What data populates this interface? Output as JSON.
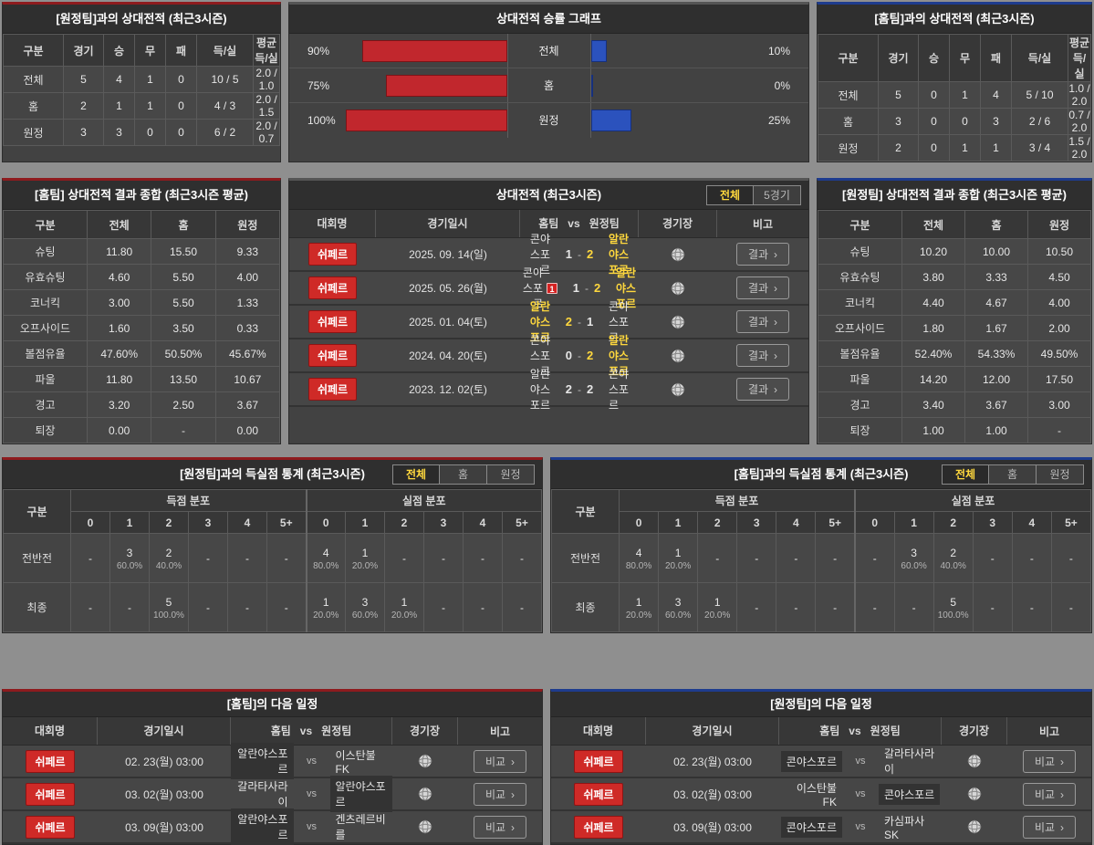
{
  "palette": {
    "accent_red": "#8e1b1e",
    "accent_blue": "#1e3c8e",
    "bar_red": "#c1272d",
    "bar_blue": "#2b52bd",
    "highlight_yellow": "#ffd83d",
    "badge_red": "#cf2a27"
  },
  "icons": {
    "chevron_right": "›",
    "stadium": "globe-icon"
  },
  "recordAway": {
    "title": "[원정팀]과의 상대전적 (최근3시즌)",
    "headers": [
      "구분",
      "경기",
      "승",
      "무",
      "패",
      "득/실",
      "평균 득/실"
    ],
    "rows": [
      {
        "label": "전체",
        "cells": [
          "5",
          "4",
          "1",
          "0",
          "10 / 5",
          "2.0 / 1.0"
        ]
      },
      {
        "label": "홈",
        "cells": [
          "2",
          "1",
          "1",
          "0",
          "4 / 3",
          "2.0 / 1.5"
        ]
      },
      {
        "label": "원정",
        "cells": [
          "3",
          "3",
          "0",
          "0",
          "6 / 2",
          "2.0 / 0.7"
        ]
      }
    ]
  },
  "winChart": {
    "title": "상대전적 승률 그래프",
    "rows": [
      {
        "label": "전체",
        "home_pct_label": "90%",
        "home_pct": 90,
        "away_pct_label": "10%",
        "away_pct": 10
      },
      {
        "label": "홈",
        "home_pct_label": "75%",
        "home_pct": 75,
        "away_pct_label": "0%",
        "away_pct": 0
      },
      {
        "label": "원정",
        "home_pct_label": "100%",
        "home_pct": 100,
        "away_pct_label": "25%",
        "away_pct": 25
      }
    ]
  },
  "recordHome": {
    "title": "[홈팀]과의 상대전적 (최근3시즌)",
    "headers": [
      "구분",
      "경기",
      "승",
      "무",
      "패",
      "득/실",
      "평균 득/실"
    ],
    "rows": [
      {
        "label": "전체",
        "cells": [
          "5",
          "0",
          "1",
          "4",
          "5 / 10",
          "1.0 / 2.0"
        ]
      },
      {
        "label": "홈",
        "cells": [
          "3",
          "0",
          "0",
          "3",
          "2 / 6",
          "0.7 / 2.0"
        ]
      },
      {
        "label": "원정",
        "cells": [
          "2",
          "0",
          "1",
          "1",
          "3 / 4",
          "1.5 / 2.0"
        ]
      }
    ]
  },
  "homeSummary": {
    "title": "[홈팀] 상대전적 결과 종합 (최근3시즌 평균)",
    "headers": [
      "구분",
      "전체",
      "홈",
      "원정"
    ],
    "rows": [
      {
        "label": "슈팅",
        "cells": [
          "11.80",
          "15.50",
          "9.33"
        ]
      },
      {
        "label": "유효슈팅",
        "cells": [
          "4.60",
          "5.50",
          "4.00"
        ]
      },
      {
        "label": "코너킥",
        "cells": [
          "3.00",
          "5.50",
          "1.33"
        ]
      },
      {
        "label": "오프사이드",
        "cells": [
          "1.60",
          "3.50",
          "0.33"
        ]
      },
      {
        "label": "볼점유율",
        "cells": [
          "47.60%",
          "50.50%",
          "45.67%"
        ]
      },
      {
        "label": "파울",
        "cells": [
          "11.80",
          "13.50",
          "10.67"
        ]
      },
      {
        "label": "경고",
        "cells": [
          "3.20",
          "2.50",
          "3.67"
        ]
      },
      {
        "label": "퇴장",
        "cells": [
          "0.00",
          "-",
          "0.00"
        ]
      }
    ]
  },
  "h2h": {
    "title": "상대전적 (최근3시즌)",
    "tabs": [
      {
        "label": "전체",
        "active": true
      },
      {
        "label": "5경기",
        "active": false
      }
    ],
    "headers": {
      "league": "대회명",
      "datetime": "경기일시",
      "home": "홈팀",
      "vs": "vs",
      "away": "원정팀",
      "stadium": "경기장",
      "note": "비고"
    },
    "result_button": "결과",
    "score_sep": "-",
    "rows": [
      {
        "league": "쉬페르",
        "date": "2025. 09. 14(일)",
        "home": "콘야스포르",
        "home_card": "",
        "home_win": false,
        "home_score": "1",
        "away_score": "2",
        "away": "알란야스포르",
        "away_win": true
      },
      {
        "league": "쉬페르",
        "date": "2025. 05. 26(월)",
        "home": "콘야스포르",
        "home_card": "1",
        "home_win": false,
        "home_score": "1",
        "away_score": "2",
        "away": "알란야스포르",
        "away_win": true
      },
      {
        "league": "쉬페르",
        "date": "2025. 01. 04(토)",
        "home": "알란야스포르",
        "home_card": "",
        "home_win": true,
        "home_score": "2",
        "away_score": "1",
        "away": "콘야스포르",
        "away_win": false
      },
      {
        "league": "쉬페르",
        "date": "2024. 04. 20(토)",
        "home": "콘야스포르",
        "home_card": "",
        "home_win": false,
        "home_score": "0",
        "away_score": "2",
        "away": "알란야스포르",
        "away_win": true
      },
      {
        "league": "쉬페르",
        "date": "2023. 12. 02(토)",
        "home": "알란야스포르",
        "home_card": "",
        "home_win": false,
        "home_score": "2",
        "away_score": "2",
        "away": "콘야스포르",
        "away_win": false
      }
    ]
  },
  "awaySummary": {
    "title": "[원정팀] 상대전적 결과 종합 (최근3시즌 평균)",
    "headers": [
      "구분",
      "전체",
      "홈",
      "원정"
    ],
    "rows": [
      {
        "label": "슈팅",
        "cells": [
          "10.20",
          "10.00",
          "10.50"
        ]
      },
      {
        "label": "유효슈팅",
        "cells": [
          "3.80",
          "3.33",
          "4.50"
        ]
      },
      {
        "label": "코너킥",
        "cells": [
          "4.40",
          "4.67",
          "4.00"
        ]
      },
      {
        "label": "오프사이드",
        "cells": [
          "1.80",
          "1.67",
          "2.00"
        ]
      },
      {
        "label": "볼점유율",
        "cells": [
          "52.40%",
          "54.33%",
          "49.50%"
        ]
      },
      {
        "label": "파울",
        "cells": [
          "14.20",
          "12.00",
          "17.50"
        ]
      },
      {
        "label": "경고",
        "cells": [
          "3.40",
          "3.67",
          "3.00"
        ]
      },
      {
        "label": "퇴장",
        "cells": [
          "1.00",
          "1.00",
          "-"
        ]
      }
    ]
  },
  "goalsAway": {
    "title": "[원정팀]과의 득실점 통계 (최근3시즌)",
    "tabs": [
      {
        "label": "전체",
        "active": true
      },
      {
        "label": "홈",
        "active": false
      },
      {
        "label": "원정",
        "active": false
      }
    ],
    "corner_header": "구분",
    "group1": "득점 분포",
    "group2": "실점 분포",
    "cols": [
      "0",
      "1",
      "2",
      "3",
      "4",
      "5+"
    ],
    "rows": [
      {
        "label": "전반전",
        "scored": [
          {
            "n": "-",
            "p": ""
          },
          {
            "n": "3",
            "p": "60.0%"
          },
          {
            "n": "2",
            "p": "40.0%"
          },
          {
            "n": "-",
            "p": ""
          },
          {
            "n": "-",
            "p": ""
          },
          {
            "n": "-",
            "p": ""
          }
        ],
        "conceded": [
          {
            "n": "4",
            "p": "80.0%"
          },
          {
            "n": "1",
            "p": "20.0%"
          },
          {
            "n": "-",
            "p": ""
          },
          {
            "n": "-",
            "p": ""
          },
          {
            "n": "-",
            "p": ""
          },
          {
            "n": "-",
            "p": ""
          }
        ]
      },
      {
        "label": "최종",
        "scored": [
          {
            "n": "-",
            "p": ""
          },
          {
            "n": "-",
            "p": ""
          },
          {
            "n": "5",
            "p": "100.0%"
          },
          {
            "n": "-",
            "p": ""
          },
          {
            "n": "-",
            "p": ""
          },
          {
            "n": "-",
            "p": ""
          }
        ],
        "conceded": [
          {
            "n": "1",
            "p": "20.0%"
          },
          {
            "n": "3",
            "p": "60.0%"
          },
          {
            "n": "1",
            "p": "20.0%"
          },
          {
            "n": "-",
            "p": ""
          },
          {
            "n": "-",
            "p": ""
          },
          {
            "n": "-",
            "p": ""
          }
        ]
      }
    ]
  },
  "goalsHome": {
    "title": "[홈팀]과의 득실점 통계 (최근3시즌)",
    "tabs": [
      {
        "label": "전체",
        "active": true
      },
      {
        "label": "홈",
        "active": false
      },
      {
        "label": "원정",
        "active": false
      }
    ],
    "corner_header": "구분",
    "group1": "득점 분포",
    "group2": "실점 분포",
    "cols": [
      "0",
      "1",
      "2",
      "3",
      "4",
      "5+"
    ],
    "rows": [
      {
        "label": "전반전",
        "scored": [
          {
            "n": "4",
            "p": "80.0%"
          },
          {
            "n": "1",
            "p": "20.0%"
          },
          {
            "n": "-",
            "p": ""
          },
          {
            "n": "-",
            "p": ""
          },
          {
            "n": "-",
            "p": ""
          },
          {
            "n": "-",
            "p": ""
          }
        ],
        "conceded": [
          {
            "n": "-",
            "p": ""
          },
          {
            "n": "3",
            "p": "60.0%"
          },
          {
            "n": "2",
            "p": "40.0%"
          },
          {
            "n": "-",
            "p": ""
          },
          {
            "n": "-",
            "p": ""
          },
          {
            "n": "-",
            "p": ""
          }
        ]
      },
      {
        "label": "최종",
        "scored": [
          {
            "n": "1",
            "p": "20.0%"
          },
          {
            "n": "3",
            "p": "60.0%"
          },
          {
            "n": "1",
            "p": "20.0%"
          },
          {
            "n": "-",
            "p": ""
          },
          {
            "n": "-",
            "p": ""
          },
          {
            "n": "-",
            "p": ""
          }
        ],
        "conceded": [
          {
            "n": "-",
            "p": ""
          },
          {
            "n": "-",
            "p": ""
          },
          {
            "n": "5",
            "p": "100.0%"
          },
          {
            "n": "-",
            "p": ""
          },
          {
            "n": "-",
            "p": ""
          },
          {
            "n": "-",
            "p": ""
          }
        ]
      }
    ]
  },
  "schedHome": {
    "title": "[홈팀]의 다음 일정",
    "headers": {
      "league": "대회명",
      "datetime": "경기일시",
      "home": "홈팀",
      "vs": "vs",
      "away": "원정팀",
      "stadium": "경기장",
      "note": "비고"
    },
    "compare_button": "비교",
    "rows": [
      {
        "league": "쉬페르",
        "date": "02. 23(월) 03:00",
        "home": "알란야스포르",
        "home_hl": true,
        "away": "이스탄불FK",
        "away_hl": false
      },
      {
        "league": "쉬페르",
        "date": "03. 02(월) 03:00",
        "home": "갈라타사라이",
        "home_hl": false,
        "away": "알란야스포르",
        "away_hl": true
      },
      {
        "league": "쉬페르",
        "date": "03. 09(월) 03:00",
        "home": "알란야스포르",
        "home_hl": true,
        "away": "겐츠레르비를",
        "away_hl": false
      }
    ]
  },
  "schedAway": {
    "title": "[원정팀]의 다음 일정",
    "headers": {
      "league": "대회명",
      "datetime": "경기일시",
      "home": "홈팀",
      "vs": "vs",
      "away": "원정팀",
      "stadium": "경기장",
      "note": "비고"
    },
    "compare_button": "비교",
    "rows": [
      {
        "league": "쉬페르",
        "date": "02. 23(월) 03:00",
        "home": "콘야스포르",
        "home_hl": true,
        "away": "갈라타사라이",
        "away_hl": false
      },
      {
        "league": "쉬페르",
        "date": "03. 02(월) 03:00",
        "home": "이스탄불FK",
        "home_hl": false,
        "away": "콘야스포르",
        "away_hl": true
      },
      {
        "league": "쉬페르",
        "date": "03. 09(월) 03:00",
        "home": "콘야스포르",
        "home_hl": true,
        "away": "카심파사SK",
        "away_hl": false
      }
    ]
  }
}
